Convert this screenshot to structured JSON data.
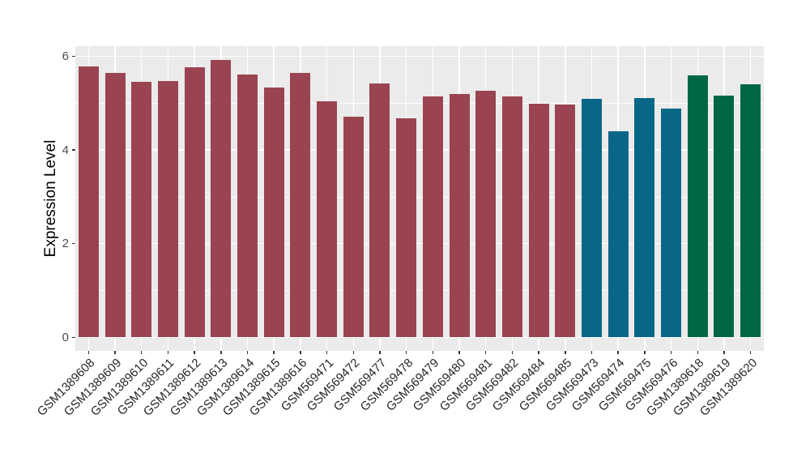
{
  "chart_data": {
    "type": "bar",
    "title": "",
    "xlabel": "",
    "ylabel": "Expression Level",
    "ylim": [
      -0.29,
      6.22
    ],
    "yticks_major": [
      0,
      2,
      4,
      6
    ],
    "yticks_minor": [
      1,
      3,
      5
    ],
    "grid": true,
    "legend_position": "none",
    "categories": [
      "GSM1389608",
      "GSM1389609",
      "GSM1389610",
      "GSM1389611",
      "GSM1389612",
      "GSM1389613",
      "GSM1389614",
      "GSM1389615",
      "GSM1389616",
      "GSM569471",
      "GSM569472",
      "GSM569477",
      "GSM569478",
      "GSM569479",
      "GSM569480",
      "GSM569481",
      "GSM569482",
      "GSM569484",
      "GSM569485",
      "GSM569473",
      "GSM569474",
      "GSM569475",
      "GSM569476",
      "GSM1389618",
      "GSM1389619",
      "GSM1389620"
    ],
    "values": [
      5.78,
      5.64,
      5.45,
      5.48,
      5.77,
      5.93,
      5.62,
      5.33,
      5.65,
      5.04,
      4.71,
      5.42,
      4.68,
      5.15,
      5.2,
      5.27,
      5.15,
      4.99,
      4.98,
      5.1,
      4.4,
      5.11,
      4.89,
      5.6,
      5.17,
      5.41
    ],
    "bar_color_groups": [
      "maroon",
      "maroon",
      "maroon",
      "maroon",
      "maroon",
      "maroon",
      "maroon",
      "maroon",
      "maroon",
      "maroon",
      "maroon",
      "maroon",
      "maroon",
      "maroon",
      "maroon",
      "maroon",
      "maroon",
      "maroon",
      "maroon",
      "teal",
      "teal",
      "teal",
      "teal",
      "green",
      "green",
      "green"
    ],
    "group_colors": {
      "maroon": "#9A4452",
      "teal": "#0A6687",
      "green": "#006746"
    },
    "panel_background": "#EBEBEB",
    "gridline_color": "#FFFFFF"
  }
}
